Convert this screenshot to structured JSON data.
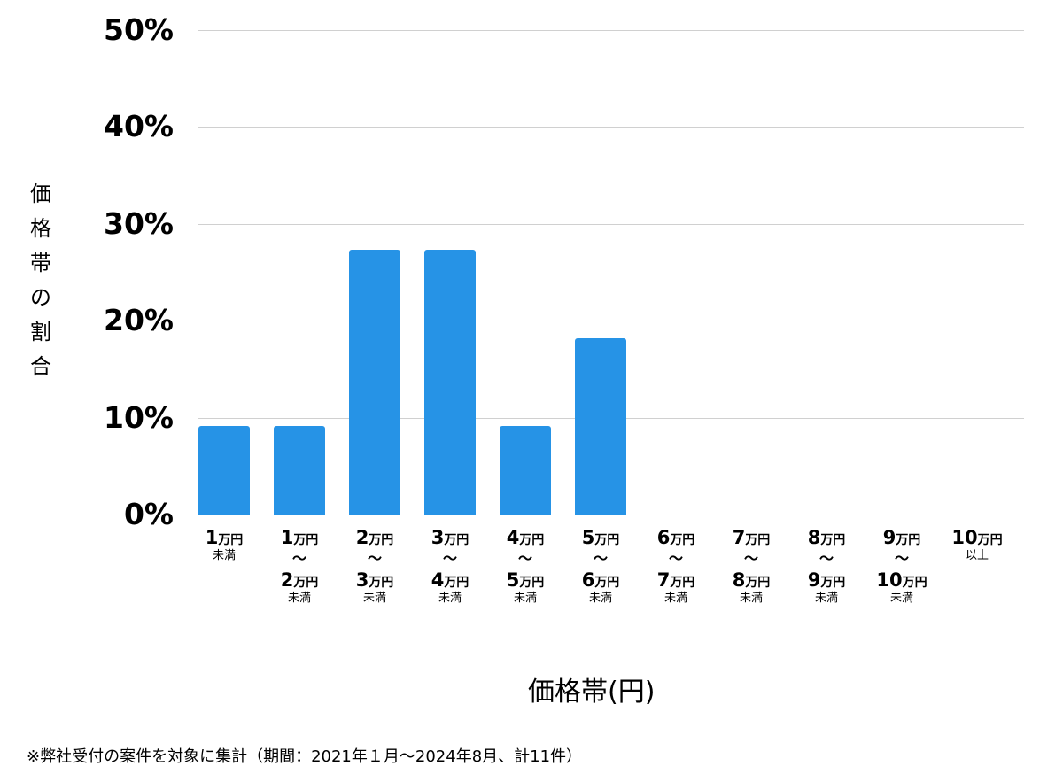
{
  "chart_data": {
    "type": "bar",
    "title": "",
    "xlabel": "価格帯(円)",
    "ylabel": "価格帯の割合",
    "ylim": [
      0,
      50
    ],
    "yticks": [
      "0%",
      "10%",
      "20%",
      "30%",
      "40%",
      "50%"
    ],
    "grid": true,
    "legend": null,
    "bar_color": "#2693e6",
    "categories": [
      "1万円未満",
      "1万円〜2万円未満",
      "2万円〜3万円未満",
      "3万円〜4万円未満",
      "4万円〜5万円未満",
      "5万円〜6万円未満",
      "6万円〜7万円未満",
      "7万円〜8万円未満",
      "8万円〜9万円未満",
      "9万円〜10万円未満",
      "10万円以上"
    ],
    "values": [
      9.1,
      9.1,
      27.3,
      27.3,
      9.1,
      18.2,
      0,
      0,
      0,
      0,
      0
    ],
    "footnote": "※弊社受付の案件を対象に集計（期間：2021年１月〜2024年8月、計11件）"
  },
  "axis": {
    "ylabel_chars": [
      "価",
      "格",
      "帯",
      "の",
      "割",
      "合"
    ],
    "unit": "万円",
    "wave": "〜",
    "under": "未満",
    "over": "以上",
    "ticks": [
      {
        "from": "1",
        "sub": "未満"
      },
      {
        "from": "1",
        "to": "2"
      },
      {
        "from": "2",
        "to": "3"
      },
      {
        "from": "3",
        "to": "4"
      },
      {
        "from": "4",
        "to": "5"
      },
      {
        "from": "5",
        "to": "6"
      },
      {
        "from": "6",
        "to": "7"
      },
      {
        "from": "7",
        "to": "8"
      },
      {
        "from": "8",
        "to": "9"
      },
      {
        "from": "9",
        "to": "10"
      },
      {
        "from": "10",
        "sub": "以上"
      }
    ]
  }
}
